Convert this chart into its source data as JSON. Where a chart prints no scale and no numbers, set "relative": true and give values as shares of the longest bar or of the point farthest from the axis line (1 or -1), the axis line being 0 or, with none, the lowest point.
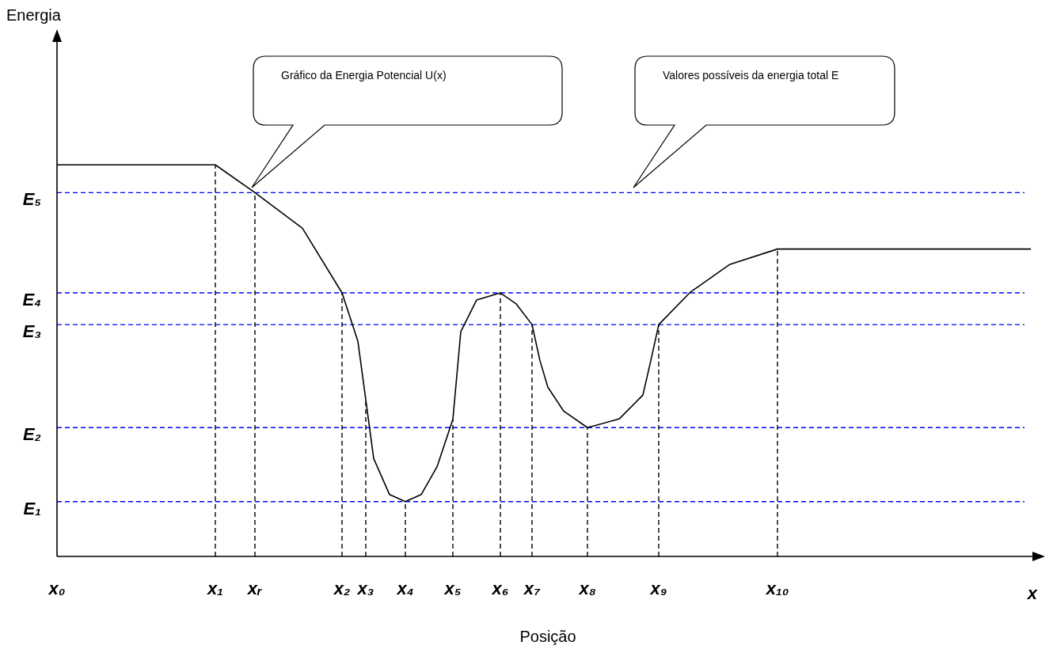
{
  "chart_data": {
    "type": "line",
    "relative": true,
    "xlabel": "Posição",
    "color": "#000000",
    "categories": [
      "x₀",
      null,
      null,
      null,
      null,
      null,
      null,
      null,
      null,
      null,
      null,
      null,
      null,
      null,
      null,
      null,
      null,
      null,
      null,
      null,
      "x₁",
      null,
      null,
      null,
      null,
      "xᵣ",
      null,
      null,
      null,
      null,
      null,
      null,
      null,
      null,
      null,
      null,
      "x₂",
      null,
      null,
      "x₃",
      null,
      null,
      null,
      null,
      "x₄",
      null,
      null,
      null,
      null,
      null,
      "x₅",
      null,
      null,
      null,
      null,
      null,
      "x₆",
      null,
      null,
      null,
      "x₇",
      null,
      null,
      null,
      null,
      null,
      null,
      "x₈",
      null,
      null,
      null,
      null,
      null,
      null,
      null,
      null,
      "x₉",
      null,
      null,
      null,
      null,
      null,
      null,
      null,
      null,
      null,
      null,
      null,
      null,
      null,
      null,
      "x₁₀",
      null,
      null,
      null,
      null,
      null,
      null,
      null,
      null,
      null,
      null,
      null,
      null,
      null,
      null,
      null,
      null,
      null,
      null,
      null,
      null,
      null,
      null,
      null,
      null,
      null,
      null,
      null,
      null,
      null,
      null,
      null,
      null
    ],
    "values": [
      1,
      null,
      null,
      null,
      null,
      null,
      null,
      null,
      null,
      null,
      null,
      null,
      null,
      null,
      null,
      null,
      null,
      null,
      null,
      null,
      1,
      null,
      null,
      null,
      null,
      0.929,
      null,
      null,
      null,
      null,
      null,
      0.838,
      null,
      null,
      null,
      null,
      0.673,
      null,
      0.55,
      0.4,
      0.25,
      null,
      0.158,
      null,
      0.14,
      null,
      0.158,
      null,
      0.229,
      null,
      0.35,
      0.574,
      null,
      0.655,
      null,
      null,
      0.673,
      null,
      0.645,
      null,
      0.592,
      0.5,
      0.432,
      null,
      0.371,
      null,
      null,
      0.329,
      null,
      null,
      null,
      0.351,
      null,
      null,
      0.412,
      0.5,
      0.592,
      null,
      null,
      null,
      0.675,
      null,
      null,
      null,
      null,
      0.746,
      null,
      null,
      null,
      null,
      null,
      0.785,
      null,
      null,
      null,
      null,
      null,
      null,
      null,
      null,
      null,
      null,
      null,
      null,
      null,
      null,
      null,
      null,
      null,
      null,
      null,
      null,
      null,
      null,
      null,
      null,
      null,
      null,
      null,
      null,
      null,
      null,
      null,
      0.785
    ],
    "ref_lines": [
      {
        "axis": "y",
        "value": 0.929,
        "label": "E₅",
        "color": "#0000ff",
        "line_style": "dashed"
      },
      {
        "axis": "y",
        "value": 0.673,
        "label": "E₄",
        "color": "#0000ff",
        "line_style": "dashed"
      },
      {
        "axis": "y",
        "value": 0.592,
        "label": "E₃",
        "color": "#0000ff",
        "line_style": "dashed"
      },
      {
        "axis": "y",
        "value": 0.329,
        "label": "E₂",
        "color": "#0000ff",
        "line_style": "dashed"
      },
      {
        "axis": "y",
        "value": 0.14,
        "label": "E₁",
        "color": "#0000ff",
        "line_style": "dashed"
      },
      {
        "axis": "x",
        "value": "x₁",
        "color": "#000000",
        "line_style": "dashed"
      },
      {
        "axis": "x",
        "value": "xᵣ",
        "color": "#000000",
        "line_style": "dashed"
      },
      {
        "axis": "x",
        "value": "x₂",
        "color": "#000000",
        "line_style": "dashed"
      },
      {
        "axis": "x",
        "value": "x₃",
        "color": "#000000",
        "line_style": "dashed"
      },
      {
        "axis": "x",
        "value": "x₄",
        "color": "#000000",
        "line_style": "dashed"
      },
      {
        "axis": "x",
        "value": "x₅",
        "color": "#000000",
        "line_style": "dashed"
      },
      {
        "axis": "x",
        "value": "x₆",
        "color": "#000000",
        "line_style": "dashed"
      },
      {
        "axis": "x",
        "value": "x₇",
        "color": "#000000",
        "line_style": "dashed"
      },
      {
        "axis": "x",
        "value": "x₈",
        "color": "#000000",
        "line_style": "dashed"
      },
      {
        "axis": "x",
        "value": "x₉",
        "color": "#000000",
        "line_style": "dashed"
      },
      {
        "axis": "x",
        "value": "x₁₀",
        "color": "#000000",
        "line_style": "dashed"
      }
    ],
    "annotations": [
      "Energia",
      "Gráfico da Energia Potencial U(x)",
      "Valores possíveis da energia total E",
      "x"
    ]
  }
}
